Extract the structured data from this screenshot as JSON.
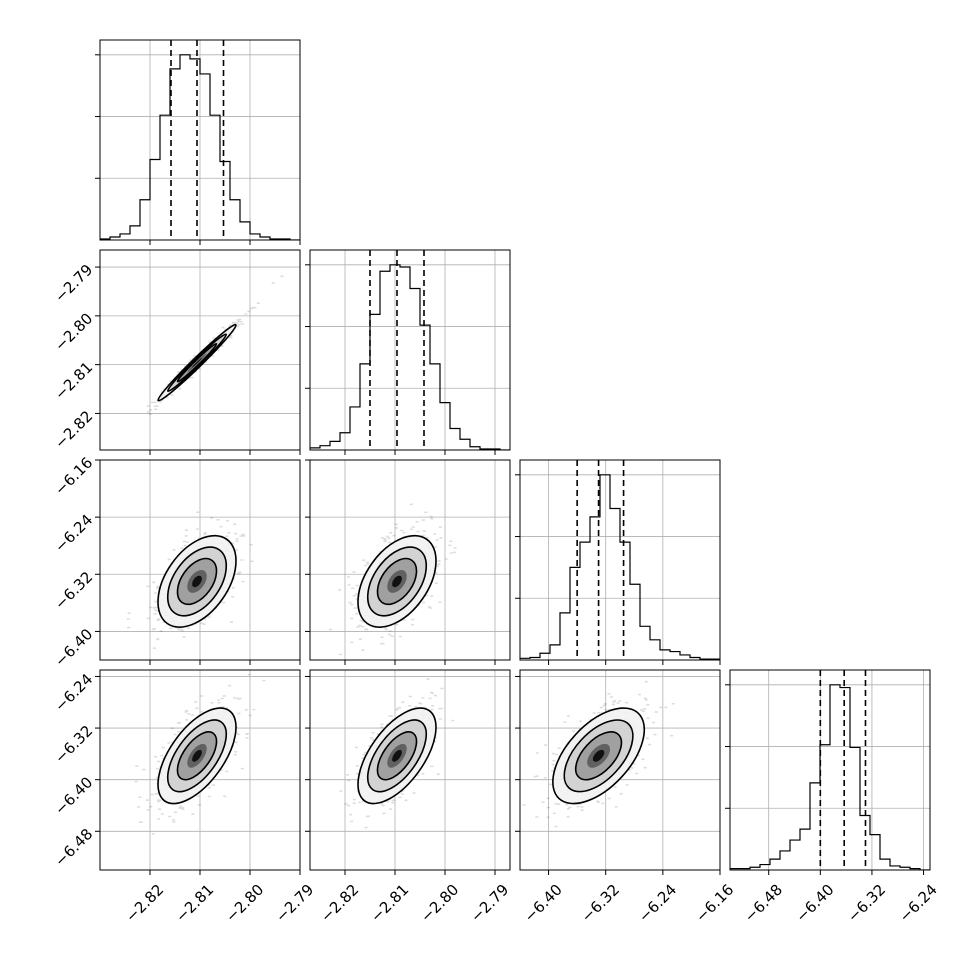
{
  "chart_data": {
    "type": "corner",
    "title": "",
    "grid": true,
    "colors": {
      "line": "#000000",
      "grid": "#b0b0b0",
      "points": "#000000",
      "density": "#000000",
      "background": "#ffffff"
    },
    "parameters": [
      {
        "xlim": [
          -2.83,
          -2.79
        ],
        "ticks": [
          -2.82,
          -2.81,
          -2.8,
          -2.79
        ],
        "tick_labels": [
          "−2.82",
          "−2.81",
          "−2.80",
          "−2.79"
        ]
      },
      {
        "xlim": [
          -2.827,
          -2.787
        ],
        "ticks": [
          -2.82,
          -2.81,
          -2.8,
          -2.79
        ],
        "tick_labels": [
          "−2.82",
          "−2.81",
          "−2.80",
          "−2.79"
        ]
      },
      {
        "xlim": [
          -6.44,
          -6.16
        ],
        "ticks": [
          -6.4,
          -6.32,
          -6.24,
          -6.16
        ],
        "tick_labels": [
          "−6.40",
          "−6.32",
          "−6.24",
          "−6.16"
        ]
      },
      {
        "xlim": [
          -6.54,
          -6.23
        ],
        "ticks": [
          -6.48,
          -6.4,
          -6.32,
          -6.24
        ],
        "tick_labels": [
          "−6.48",
          "−6.40",
          "−6.32",
          "−6.24"
        ]
      }
    ],
    "row_axes": [
      null,
      {
        "ylim": [
          -2.8275,
          -2.7865
        ],
        "ticks": [
          -2.79,
          -2.8,
          -2.81,
          -2.82
        ],
        "tick_labels": [
          "−2.79",
          "−2.80",
          "−2.81",
          "−2.82"
        ]
      },
      {
        "ylim": [
          -6.44,
          -6.16
        ],
        "ticks": [
          -6.16,
          -6.24,
          -6.32,
          -6.4
        ],
        "tick_labels": [
          "−6.16",
          "−6.24",
          "−6.32",
          "−6.40"
        ]
      },
      {
        "ylim": [
          -6.54,
          -6.23
        ],
        "ticks": [
          -6.24,
          -6.32,
          -6.4,
          -6.48
        ],
        "tick_labels": [
          "−6.24",
          "−6.32",
          "−6.40",
          "−6.48"
        ]
      }
    ],
    "histograms": [
      {
        "quantiles": [
          -2.8158,
          -2.8106,
          -2.8053
        ],
        "counts": [
          1,
          3,
          6,
          14,
          40,
          80,
          124,
          170,
          184,
          180,
          165,
          124,
          78,
          40,
          18,
          6,
          3,
          1,
          1,
          0
        ]
      },
      {
        "quantiles": [
          -2.815,
          -2.8096,
          -2.8042
        ],
        "counts": [
          2,
          4,
          8,
          16,
          40,
          80,
          126,
          166,
          172,
          170,
          150,
          116,
          80,
          44,
          20,
          10,
          3,
          1,
          1,
          0
        ]
      },
      {
        "quantiles": [
          -6.36,
          -6.33,
          -6.295
        ],
        "counts": [
          2,
          3,
          8,
          18,
          56,
          110,
          140,
          170,
          220,
          180,
          140,
          90,
          40,
          24,
          12,
          10,
          6,
          3,
          1,
          1
        ]
      },
      {
        "quantiles": [
          -6.4,
          -6.363,
          -6.33
        ],
        "counts": [
          1,
          1,
          2,
          4,
          8,
          14,
          22,
          30,
          64,
          92,
          136,
          134,
          90,
          40,
          26,
          8,
          3,
          2,
          1,
          0
        ]
      }
    ],
    "pairs": [
      {
        "row": 1,
        "col": 0,
        "mean": [
          -2.8106,
          -2.8096
        ],
        "sd": [
          0.0039,
          0.0039
        ],
        "rho": 0.985
      },
      {
        "row": 2,
        "col": 0,
        "mean": [
          -2.8106,
          -6.33
        ],
        "sd": [
          0.0039,
          0.032
        ],
        "rho": 0.45
      },
      {
        "row": 2,
        "col": 1,
        "mean": [
          -2.8096,
          -6.33
        ],
        "sd": [
          0.0039,
          0.032
        ],
        "rho": 0.45
      },
      {
        "row": 3,
        "col": 0,
        "mean": [
          -2.8106,
          -6.363
        ],
        "sd": [
          0.0039,
          0.037
        ],
        "rho": 0.6
      },
      {
        "row": 3,
        "col": 1,
        "mean": [
          -2.8096,
          -6.363
        ],
        "sd": [
          0.0039,
          0.037
        ],
        "rho": 0.6
      },
      {
        "row": 3,
        "col": 2,
        "mean": [
          -6.33,
          -6.363
        ],
        "sd": [
          0.032,
          0.037
        ],
        "rho": 0.55
      }
    ]
  }
}
